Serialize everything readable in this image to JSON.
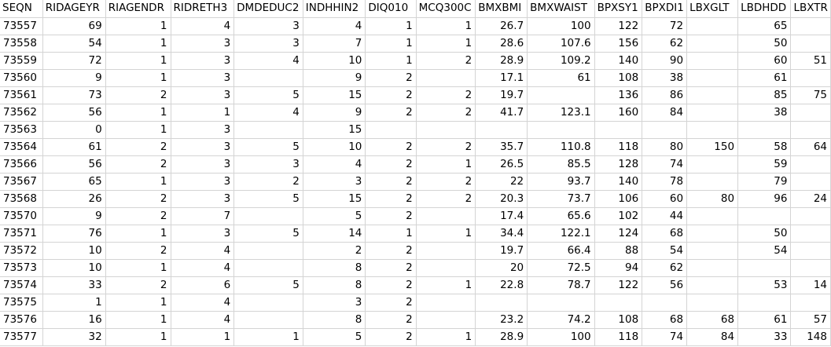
{
  "sheet": {
    "headers": [
      "SEQN",
      "RIDAGEYR",
      "RIAGENDR",
      "RIDRETH3",
      "DMDEDUC2",
      "INDHHIN2",
      "DIQ010",
      "MCQ300C",
      "BMXBMI",
      "BMXWAIST",
      "BPXSY1",
      "BPXDI1",
      "LBXGLT",
      "LBDHDD",
      "LBXTR"
    ],
    "rows": [
      [
        "73557",
        "69",
        "1",
        "4",
        "3",
        "4",
        "1",
        "1",
        "26.7",
        "100",
        "122",
        "72",
        "",
        "65",
        ""
      ],
      [
        "73558",
        "54",
        "1",
        "3",
        "3",
        "7",
        "1",
        "1",
        "28.6",
        "107.6",
        "156",
        "62",
        "",
        "50",
        ""
      ],
      [
        "73559",
        "72",
        "1",
        "3",
        "4",
        "10",
        "1",
        "2",
        "28.9",
        "109.2",
        "140",
        "90",
        "",
        "60",
        "51"
      ],
      [
        "73560",
        "9",
        "1",
        "3",
        "",
        "9",
        "2",
        "",
        "17.1",
        "61",
        "108",
        "38",
        "",
        "61",
        ""
      ],
      [
        "73561",
        "73",
        "2",
        "3",
        "5",
        "15",
        "2",
        "2",
        "19.7",
        "",
        "136",
        "86",
        "",
        "85",
        "75"
      ],
      [
        "73562",
        "56",
        "1",
        "1",
        "4",
        "9",
        "2",
        "2",
        "41.7",
        "123.1",
        "160",
        "84",
        "",
        "38",
        ""
      ],
      [
        "73563",
        "0",
        "1",
        "3",
        "",
        "15",
        "",
        "",
        "",
        "",
        "",
        "",
        "",
        "",
        ""
      ],
      [
        "73564",
        "61",
        "2",
        "3",
        "5",
        "10",
        "2",
        "2",
        "35.7",
        "110.8",
        "118",
        "80",
        "150",
        "58",
        "64"
      ],
      [
        "73566",
        "56",
        "2",
        "3",
        "3",
        "4",
        "2",
        "1",
        "26.5",
        "85.5",
        "128",
        "74",
        "",
        "59",
        ""
      ],
      [
        "73567",
        "65",
        "1",
        "3",
        "2",
        "3",
        "2",
        "2",
        "22",
        "93.7",
        "140",
        "78",
        "",
        "79",
        ""
      ],
      [
        "73568",
        "26",
        "2",
        "3",
        "5",
        "15",
        "2",
        "2",
        "20.3",
        "73.7",
        "106",
        "60",
        "80",
        "96",
        "24"
      ],
      [
        "73570",
        "9",
        "2",
        "7",
        "",
        "5",
        "2",
        "",
        "17.4",
        "65.6",
        "102",
        "44",
        "",
        "",
        ""
      ],
      [
        "73571",
        "76",
        "1",
        "3",
        "5",
        "14",
        "1",
        "1",
        "34.4",
        "122.1",
        "124",
        "68",
        "",
        "50",
        ""
      ],
      [
        "73572",
        "10",
        "2",
        "4",
        "",
        "2",
        "2",
        "",
        "19.7",
        "66.4",
        "88",
        "54",
        "",
        "54",
        ""
      ],
      [
        "73573",
        "10",
        "1",
        "4",
        "",
        "8",
        "2",
        "",
        "20",
        "72.5",
        "94",
        "62",
        "",
        "",
        ""
      ],
      [
        "73574",
        "33",
        "2",
        "6",
        "5",
        "8",
        "2",
        "1",
        "22.8",
        "78.7",
        "122",
        "56",
        "",
        "53",
        "14"
      ],
      [
        "73575",
        "1",
        "1",
        "4",
        "",
        "3",
        "2",
        "",
        "",
        "",
        "",
        "",
        "",
        "",
        ""
      ],
      [
        "73576",
        "16",
        "1",
        "4",
        "",
        "8",
        "2",
        "",
        "23.2",
        "74.2",
        "108",
        "68",
        "68",
        "61",
        "57"
      ],
      [
        "73577",
        "32",
        "1",
        "1",
        "1",
        "5",
        "2",
        "1",
        "28.9",
        "100",
        "118",
        "74",
        "84",
        "33",
        "148"
      ]
    ]
  }
}
